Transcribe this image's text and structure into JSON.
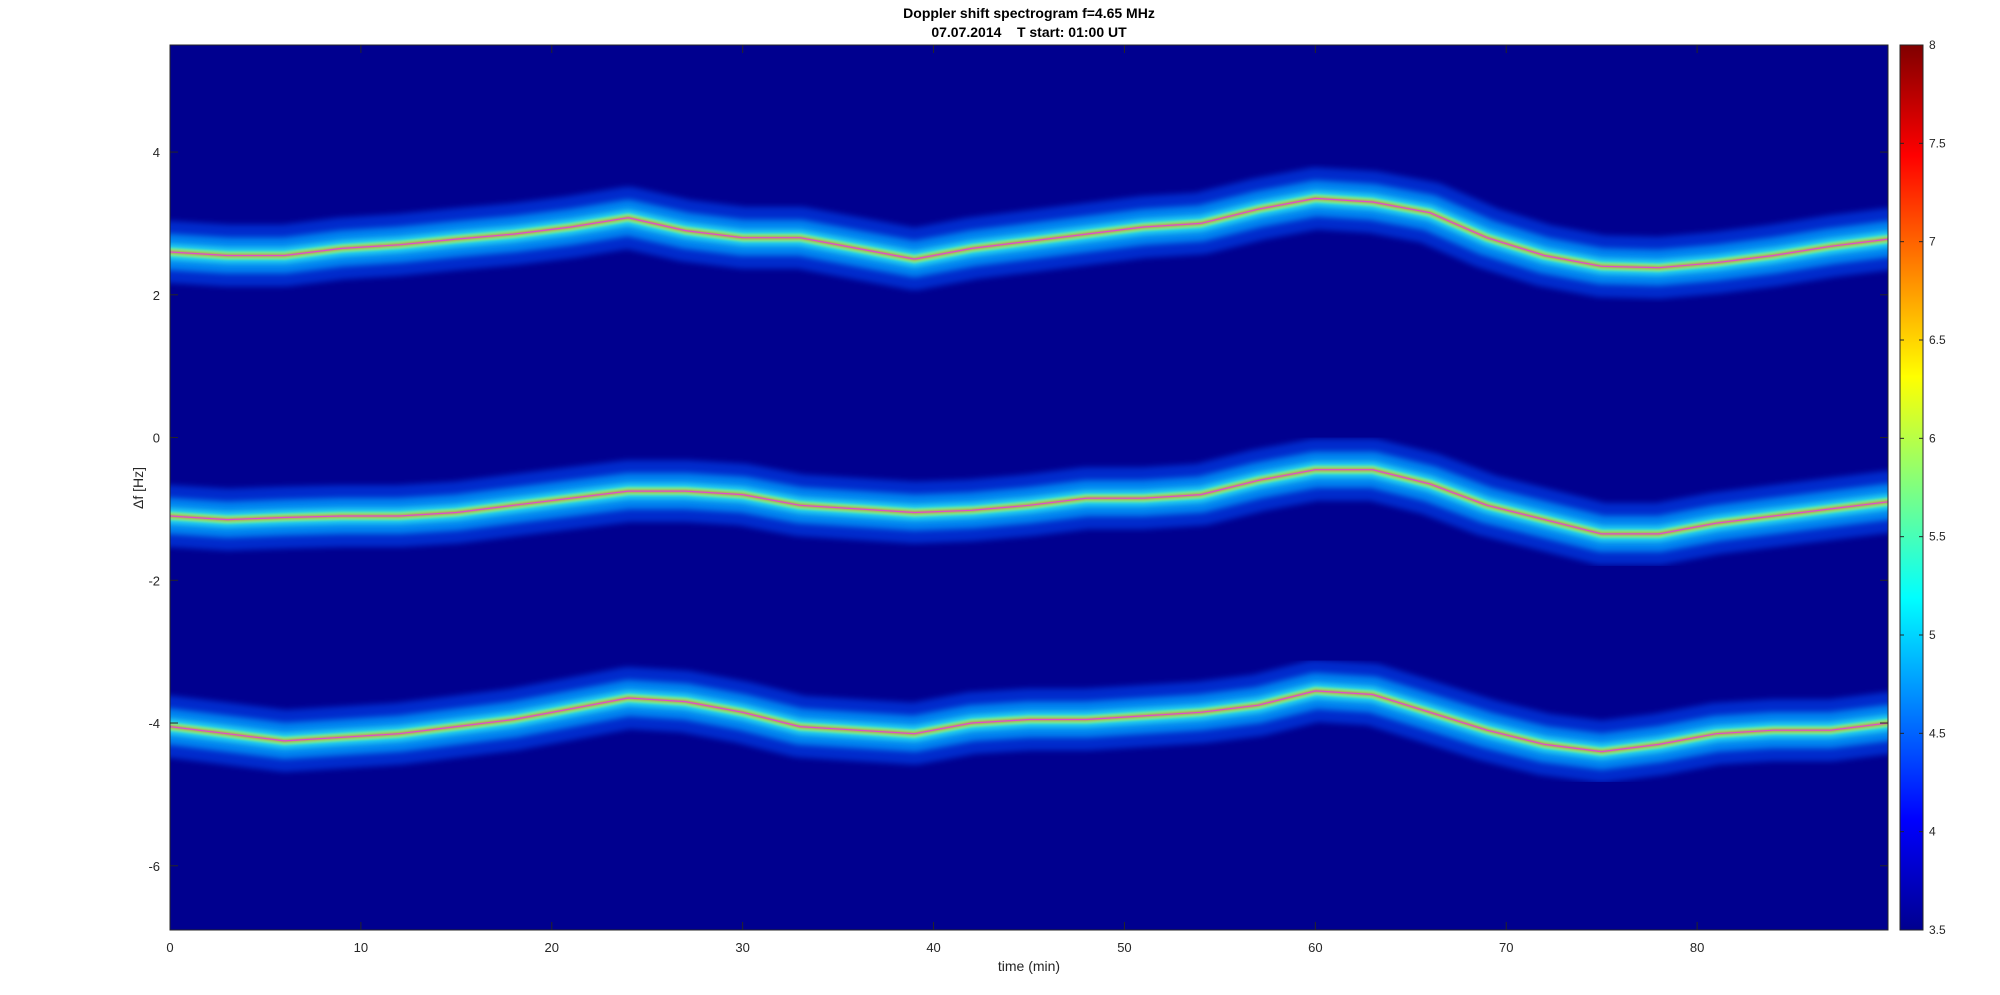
{
  "chart_data": {
    "type": "heatmap",
    "title": "Doppler shift spectrogram f=4.65 MHz",
    "subtitle": "07.07.2014    T start: 01:00 UT",
    "xlabel": "time (min)",
    "ylabel": "Δf [Hz]",
    "xlim": [
      0,
      90
    ],
    "ylim": [
      -6.9,
      5.5
    ],
    "x_ticks": [
      0,
      10,
      20,
      30,
      40,
      50,
      60,
      70,
      80
    ],
    "y_ticks": [
      -6,
      -4,
      -2,
      0,
      2,
      4
    ],
    "colormap": "jet",
    "clim": [
      3.5,
      8
    ],
    "colorbar_ticks": [
      3.5,
      4,
      4.5,
      5,
      5.5,
      6,
      6.5,
      7,
      7.5,
      8
    ],
    "background_color": "#00008F",
    "grid": false,
    "series": [
      {
        "x": [
          0,
          3,
          6,
          9,
          12,
          15,
          18,
          21,
          24,
          27,
          30,
          33,
          36,
          39,
          42,
          45,
          48,
          51,
          54,
          57,
          60,
          63,
          66,
          69,
          72,
          75,
          78,
          81,
          84,
          87,
          90
        ],
        "y": [
          2.6,
          2.55,
          2.55,
          2.65,
          2.7,
          2.78,
          2.85,
          2.95,
          3.08,
          2.9,
          2.8,
          2.8,
          2.65,
          2.5,
          2.65,
          2.75,
          2.85,
          2.95,
          3.0,
          3.2,
          3.35,
          3.3,
          3.15,
          2.8,
          2.55,
          2.4,
          2.38,
          2.45,
          2.55,
          2.68,
          2.78
        ]
      },
      {
        "x": [
          0,
          3,
          6,
          9,
          12,
          15,
          18,
          21,
          24,
          27,
          30,
          33,
          36,
          39,
          42,
          45,
          48,
          51,
          54,
          57,
          60,
          63,
          66,
          69,
          72,
          75,
          78,
          81,
          84,
          87,
          90
        ],
        "y": [
          -1.1,
          -1.15,
          -1.12,
          -1.1,
          -1.1,
          -1.05,
          -0.95,
          -0.85,
          -0.75,
          -0.75,
          -0.8,
          -0.95,
          -1.0,
          -1.05,
          -1.02,
          -0.95,
          -0.85,
          -0.85,
          -0.8,
          -0.6,
          -0.45,
          -0.45,
          -0.65,
          -0.95,
          -1.15,
          -1.35,
          -1.35,
          -1.2,
          -1.1,
          -1.0,
          -0.9
        ]
      },
      {
        "x": [
          0,
          3,
          6,
          9,
          12,
          15,
          18,
          21,
          24,
          27,
          30,
          33,
          36,
          39,
          42,
          45,
          48,
          51,
          54,
          57,
          60,
          63,
          66,
          69,
          72,
          75,
          78,
          81,
          84,
          87,
          90
        ],
        "y": [
          -4.05,
          -4.15,
          -4.25,
          -4.2,
          -4.15,
          -4.05,
          -3.95,
          -3.8,
          -3.65,
          -3.7,
          -3.85,
          -4.05,
          -4.1,
          -4.15,
          -4.0,
          -3.95,
          -3.95,
          -3.9,
          -3.85,
          -3.75,
          -3.55,
          -3.6,
          -3.85,
          -4.1,
          -4.3,
          -4.4,
          -4.3,
          -4.15,
          -4.1,
          -4.1,
          -4.0
        ]
      }
    ]
  }
}
